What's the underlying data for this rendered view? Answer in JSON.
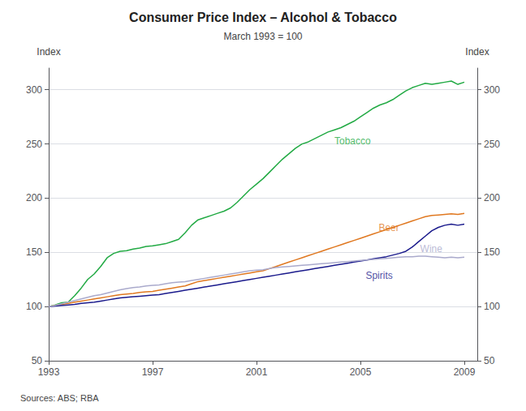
{
  "chart_data": {
    "type": "line",
    "title": "Consumer Price Index – Alcohol & Tobacco",
    "subtitle": "March 1993 = 100",
    "ylabel": "Index",
    "y2label": "Index",
    "source": "Sources: ABS; RBA",
    "grid": true,
    "xlim": [
      1993.0,
      2009.5
    ],
    "xticks": [
      1993,
      1997,
      2001,
      2005,
      2009
    ],
    "ylim": [
      50,
      320
    ],
    "yticks": [
      50,
      100,
      150,
      200,
      250,
      300
    ],
    "y2lim": [
      50,
      320
    ],
    "y2ticks": [
      50,
      100,
      150,
      200,
      250,
      300
    ],
    "x": [
      1993,
      1993.25,
      1993.5,
      1993.75,
      1994,
      1994.25,
      1994.5,
      1994.75,
      1995,
      1995.25,
      1995.5,
      1995.75,
      1996,
      1996.25,
      1996.5,
      1996.75,
      1997,
      1997.25,
      1997.5,
      1997.75,
      1998,
      1998.25,
      1998.5,
      1998.75,
      1999,
      1999.25,
      1999.5,
      1999.75,
      2000,
      2000.25,
      2000.5,
      2000.75,
      2001,
      2001.25,
      2001.5,
      2001.75,
      2002,
      2002.25,
      2002.5,
      2002.75,
      2003,
      2003.25,
      2003.5,
      2003.75,
      2004,
      2004.25,
      2004.5,
      2004.75,
      2005,
      2005.25,
      2005.5,
      2005.75,
      2006,
      2006.25,
      2006.5,
      2006.75,
      2007,
      2007.25,
      2007.5,
      2007.75,
      2008,
      2008.25,
      2008.5,
      2008.75,
      2009
    ],
    "series": [
      {
        "color": "#22aa44",
        "values": [
          100.0,
          101.5,
          103.5,
          104.0,
          110.0,
          117.0,
          125.0,
          130.0,
          137.0,
          145.0,
          149.0,
          151.0,
          151.5,
          153.0,
          154.0,
          155.5,
          156.0,
          157.0,
          158.0,
          160.0,
          162.0,
          168.0,
          175.0,
          180.0,
          182.0,
          184.0,
          186.0,
          188.0,
          191.0,
          196.0,
          202.0,
          208.0,
          213.0,
          218.0,
          224.0,
          230.0,
          236.0,
          241.0,
          246.0,
          250.0,
          252.0,
          255.0,
          258.0,
          261.0,
          263.0,
          265.0,
          268.0,
          271.0,
          275.0,
          279.0,
          283.0,
          286.0,
          288.0,
          291.0,
          295.0,
          299.0,
          302.0,
          304.0,
          306.0,
          305.0,
          306.0,
          307.0,
          308.0,
          305.0,
          307.0
        ]
      },
      {
        "color": "#e07820",
        "values": [
          100.0,
          101.0,
          102.0,
          103.0,
          104.0,
          105.0,
          106.0,
          107.0,
          108.0,
          109.0,
          110.0,
          111.0,
          111.5,
          112.0,
          113.0,
          113.5,
          114.0,
          115.0,
          116.0,
          117.0,
          118.0,
          119.0,
          121.0,
          123.0,
          124.0,
          125.0,
          126.0,
          127.0,
          128.0,
          129.0,
          130.0,
          131.0,
          132.0,
          133.0,
          135.0,
          137.0,
          139.0,
          141.0,
          143.0,
          145.0,
          147.0,
          149.0,
          151.0,
          153.0,
          155.0,
          157.0,
          159.0,
          161.0,
          163.0,
          165.0,
          167.0,
          169.0,
          171.0,
          173.0,
          175.0,
          177.0,
          179.0,
          181.0,
          183.0,
          184.0,
          184.5,
          185.0,
          185.5,
          185.0,
          186.0
        ]
      },
      {
        "color": "#1a1a8c",
        "values": [
          100.0,
          100.5,
          101.0,
          101.5,
          102.0,
          103.0,
          103.5,
          104.0,
          105.0,
          106.0,
          107.0,
          108.0,
          108.5,
          109.0,
          109.5,
          110.0,
          110.5,
          111.0,
          112.0,
          113.0,
          114.0,
          115.0,
          116.0,
          117.0,
          118.0,
          119.0,
          120.0,
          121.0,
          122.0,
          123.0,
          124.0,
          125.0,
          126.0,
          127.0,
          128.0,
          129.0,
          130.0,
          131.0,
          132.0,
          133.0,
          134.0,
          135.0,
          136.0,
          137.0,
          138.0,
          139.0,
          140.0,
          141.0,
          142.0,
          143.0,
          144.0,
          145.0,
          146.0,
          147.5,
          149.0,
          151.0,
          155.0,
          160.0,
          165.0,
          170.0,
          173.0,
          175.0,
          176.0,
          175.0,
          176.0
        ]
      },
      {
        "color": "#aaaacc",
        "values": [
          100.0,
          101.0,
          102.5,
          104.0,
          105.5,
          107.0,
          108.5,
          110.0,
          111.0,
          112.5,
          114.0,
          115.5,
          116.5,
          117.5,
          118.0,
          119.0,
          119.5,
          120.0,
          121.0,
          122.0,
          122.5,
          123.0,
          124.0,
          125.0,
          126.0,
          127.0,
          128.0,
          129.0,
          130.0,
          131.0,
          132.0,
          133.0,
          133.5,
          134.0,
          135.0,
          136.0,
          136.5,
          137.0,
          137.5,
          138.0,
          138.5,
          139.0,
          139.5,
          140.0,
          140.5,
          141.0,
          141.5,
          142.0,
          142.5,
          143.0,
          143.5,
          144.0,
          144.5,
          145.0,
          145.5,
          146.0,
          146.0,
          146.5,
          146.5,
          146.0,
          145.5,
          145.0,
          145.5,
          145.0,
          145.5
        ]
      }
    ],
    "annotations": [
      {
        "text": "Tobacco",
        "x": 2004.0,
        "y": 248,
        "color": "#22aa44"
      },
      {
        "text": "Beer",
        "x": 2005.7,
        "y": 168,
        "color": "#e07820"
      },
      {
        "text": "Spirits",
        "x": 2005.2,
        "y": 124,
        "color": "#1a1a8c"
      },
      {
        "text": "Wine",
        "x": 2007.3,
        "y": 149,
        "color": "#aaaacc"
      }
    ]
  }
}
